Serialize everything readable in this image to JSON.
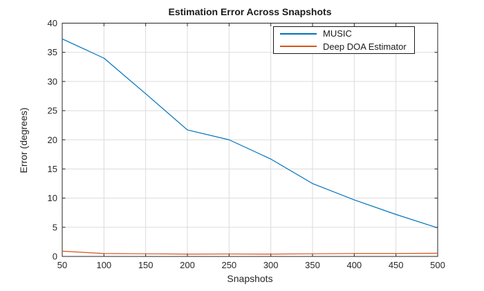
{
  "figure": {
    "title": "Estimation Error Across Snapshots",
    "xlabel": "Snapshots",
    "ylabel": "Error (degrees)"
  },
  "chart_data": {
    "type": "line",
    "title": "Estimation Error Across Snapshots",
    "xlabel": "Snapshots",
    "ylabel": "Error (degrees)",
    "x": [
      50,
      100,
      150,
      200,
      250,
      300,
      350,
      400,
      450,
      500
    ],
    "series": [
      {
        "name": "MUSIC",
        "color": "#0072BD",
        "values": [
          37.3,
          34.0,
          27.9,
          21.7,
          20.0,
          16.7,
          12.5,
          9.7,
          7.2,
          4.9
        ]
      },
      {
        "name": "Deep DOA Estimator",
        "color": "#D95319",
        "values": [
          0.9,
          0.5,
          0.45,
          0.4,
          0.42,
          0.4,
          0.45,
          0.5,
          0.5,
          0.55
        ]
      }
    ],
    "xlim": [
      50,
      500
    ],
    "ylim": [
      0,
      40
    ],
    "xticks": [
      50,
      100,
      150,
      200,
      250,
      300,
      350,
      400,
      450,
      500
    ],
    "yticks": [
      0,
      5,
      10,
      15,
      20,
      25,
      30,
      35,
      40
    ],
    "grid": true,
    "legend_position": "top-right-inside"
  },
  "style": {
    "grid_color": "#dbdbdb",
    "axis_color": "#262626",
    "tick_text_color": "#262626",
    "title_color": "#1a1a1a",
    "background": "#ffffff",
    "legend_border": "#1a1a1a"
  }
}
